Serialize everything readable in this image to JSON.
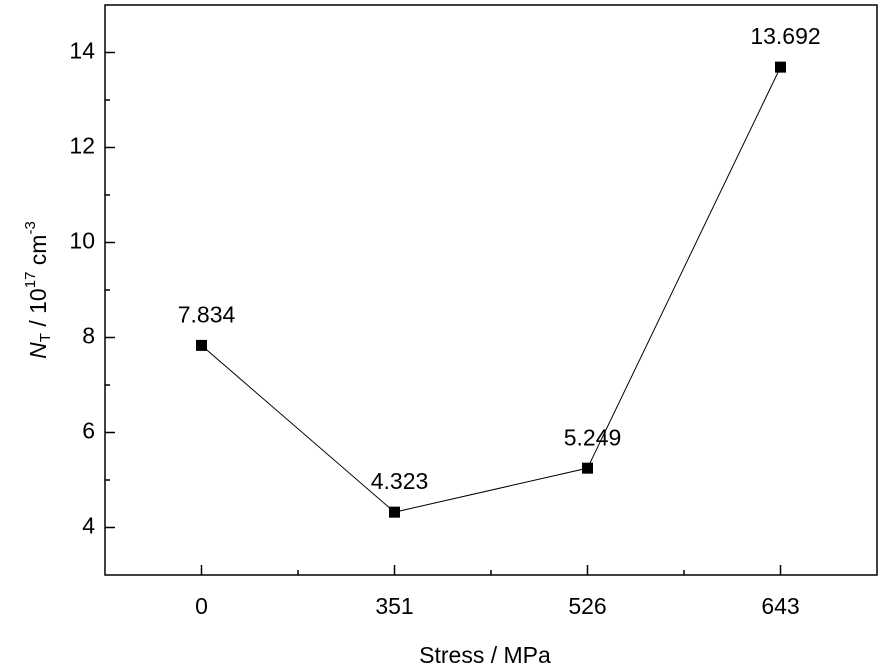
{
  "chart_data": {
    "type": "line",
    "x_label": "Stress / MPa",
    "y_label": {
      "symbol": "N",
      "subscript": "T",
      "text": " / 10",
      "exponent": "17",
      "unit": " cm",
      "unit_exponent": "-3"
    },
    "categories": [
      "0",
      "351",
      "526",
      "643"
    ],
    "series": [
      {
        "name": "NT",
        "color": "#000000",
        "values": [
          7.834,
          4.323,
          5.249,
          13.692
        ]
      }
    ],
    "ylim": [
      3,
      15
    ],
    "yticks": [
      4,
      6,
      8,
      10,
      12,
      14
    ],
    "yminorticks": [
      5,
      7,
      9,
      11,
      13
    ],
    "marker": "square",
    "data_labels": true
  }
}
